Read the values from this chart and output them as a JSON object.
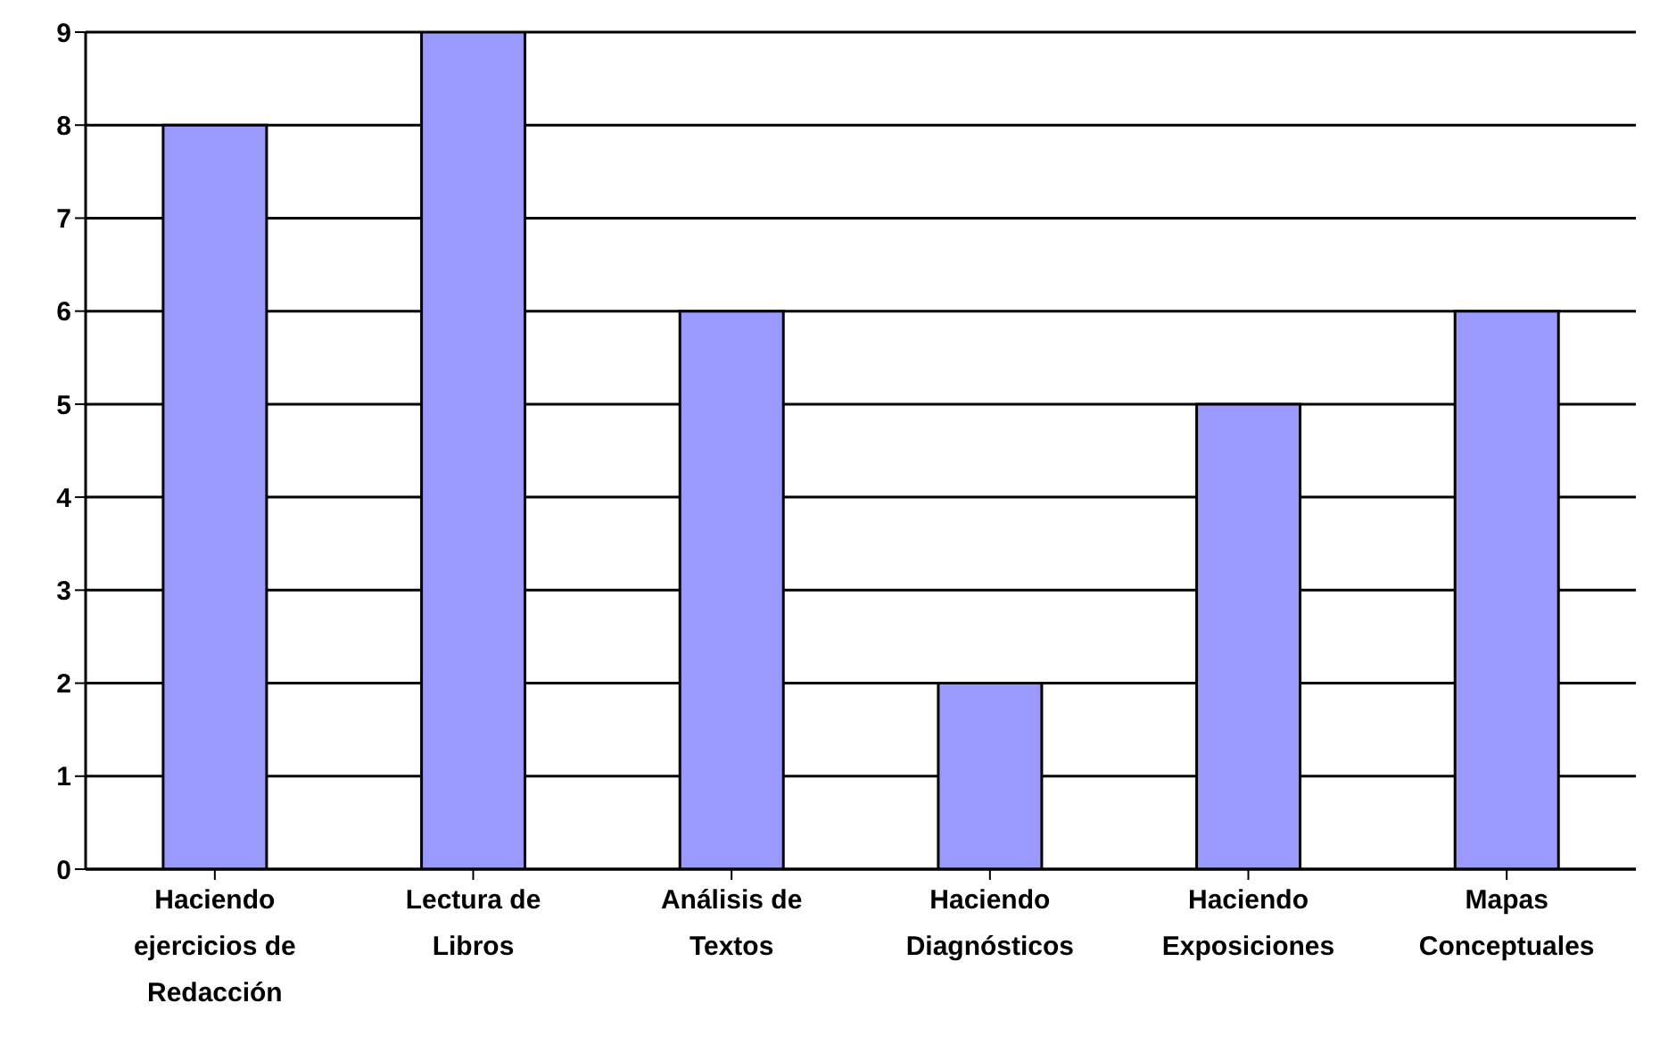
{
  "chart_data": {
    "type": "bar",
    "categories": [
      "Haciendo ejercicios de Redacción",
      "Lectura de Libros",
      "Análisis de Textos",
      "Haciendo Diagnósticos",
      "Haciendo Exposiciones",
      "Mapas Conceptuales"
    ],
    "values": [
      8,
      9,
      6,
      2,
      5,
      6
    ],
    "color": "#9999ff",
    "ylim": [
      0,
      9
    ],
    "yticks": [
      0,
      1,
      2,
      3,
      4,
      5,
      6,
      7,
      8,
      9
    ],
    "grid": "y",
    "legend": false
  }
}
